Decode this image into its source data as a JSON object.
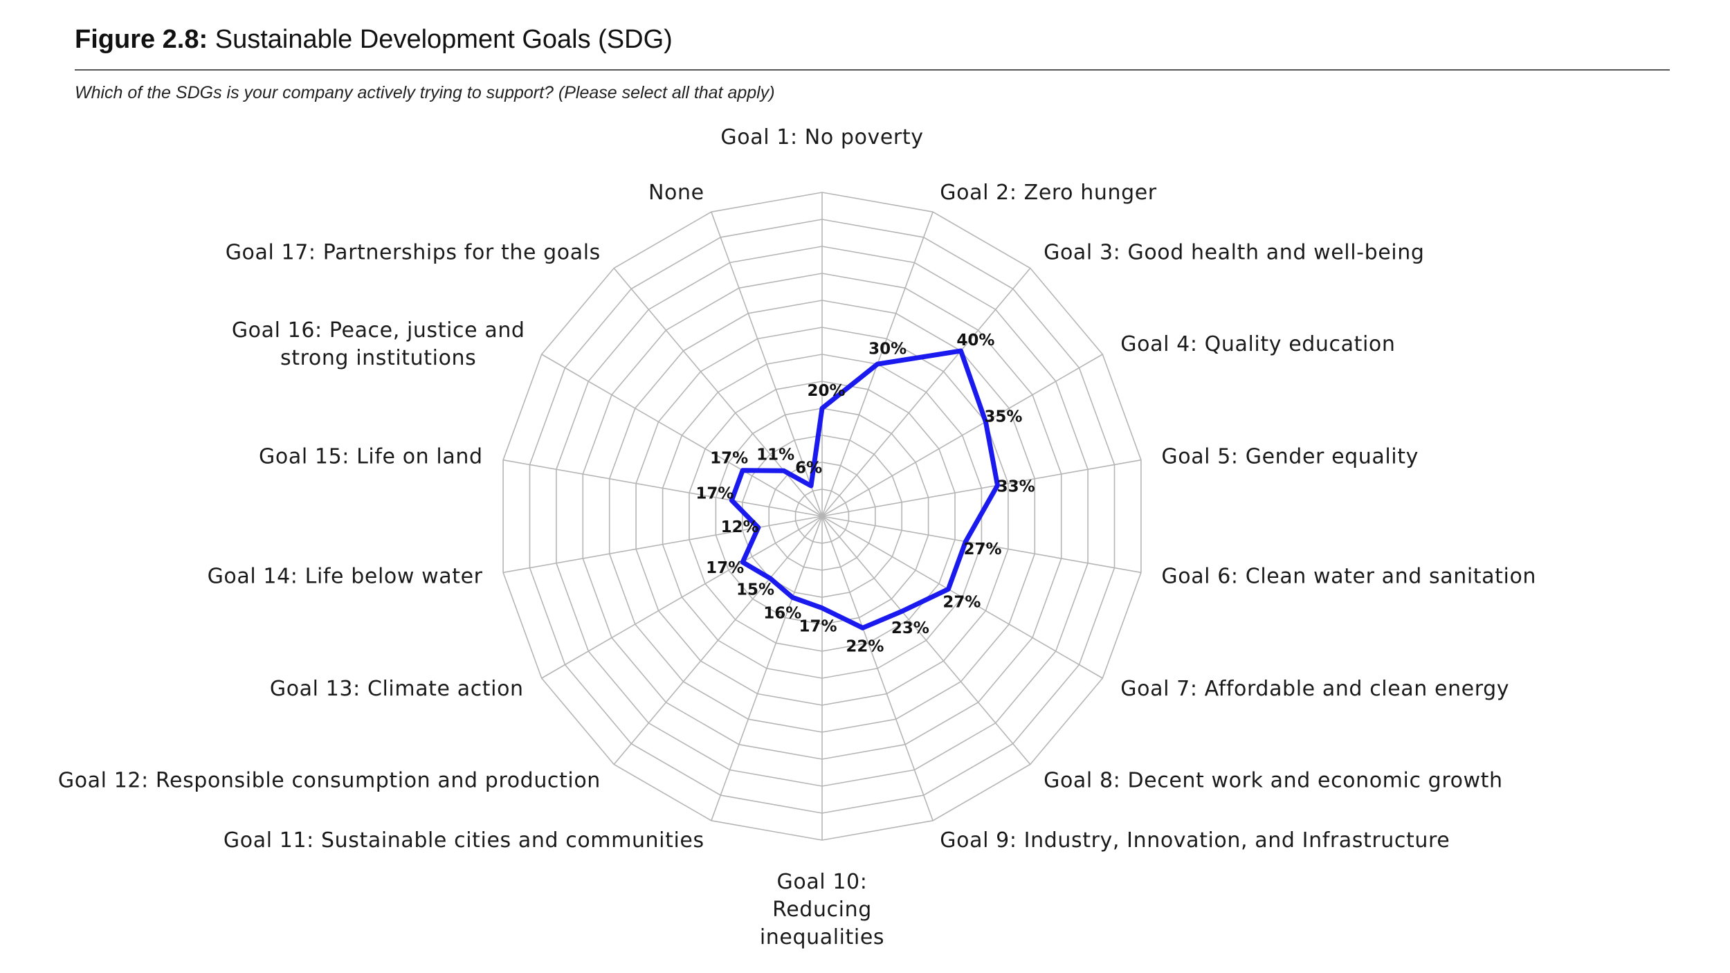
{
  "figure": {
    "number": "Figure 2.8:",
    "title": "Sustainable Development Goals (SDG)",
    "question": "Which of the SDGs is your company actively trying to support? (Please select all that apply)"
  },
  "colors": {
    "series": "#1a1aee",
    "grid": "#b5b5b5",
    "rule": "#555555"
  },
  "chart_data": {
    "type": "radar",
    "categories": [
      "Goal 1: No poverty",
      "Goal 2: Zero hunger",
      "Goal 3: Good health and well-being",
      "Goal 4: Quality education",
      "Goal 5: Gender equality",
      "Goal 6: Clean water and sanitation",
      "Goal 7: Affordable and clean energy",
      "Goal 8: Decent work and economic growth",
      "Goal 9: Industry, Innovation, and Infrastructure",
      "Goal 10:\nReducing\ninequalities",
      "Goal 11: Sustainable cities and communities",
      "Goal 12: Responsible consumption and production",
      "Goal 13: Climate action",
      "Goal 14: Life below water",
      "Goal 15: Life on land",
      "Goal 16: Peace, justice and\nstrong institutions",
      "Goal 17: Partnerships for the goals",
      "None"
    ],
    "series": [
      {
        "values": [
          20,
          30,
          40,
          35,
          33,
          27,
          27,
          23,
          22,
          17,
          16,
          15,
          17,
          12,
          17,
          17,
          11,
          6
        ]
      }
    ],
    "value_labels": [
      "20%",
      "30%",
      "40%",
      "35%",
      "33%",
      "27%",
      "27%",
      "23%",
      "22%",
      "17%",
      "16%",
      "15%",
      "17%",
      "12%",
      "17%",
      "17%",
      "11%",
      "6%"
    ],
    "range": [
      0,
      60
    ],
    "grid": true,
    "legend": "none"
  }
}
